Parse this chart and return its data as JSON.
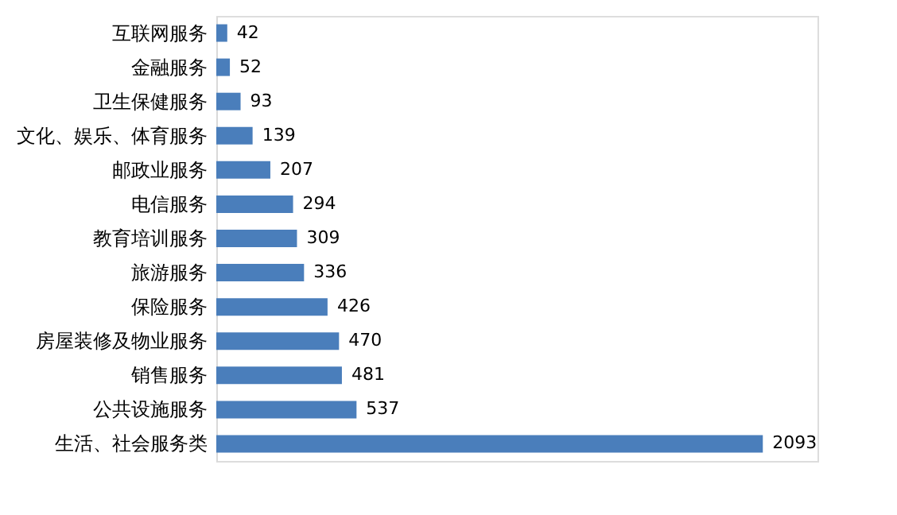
{
  "chart_data": {
    "type": "bar",
    "orientation": "horizontal",
    "categories": [
      "互联网服务",
      "金融服务",
      "卫生保健服务",
      "文化、娱乐、体育服务",
      "邮政业服务",
      "电信服务",
      "教育培训服务",
      "旅游服务",
      "保险服务",
      "房屋装修及物业服务",
      "销售服务",
      "公共设施服务",
      "生活、社会服务类"
    ],
    "values": [
      42,
      52,
      93,
      139,
      207,
      294,
      309,
      336,
      426,
      470,
      481,
      537,
      2093
    ],
    "color": "#4a7ebb",
    "data_labels": true,
    "tick_labels": "y",
    "grid": false
  }
}
